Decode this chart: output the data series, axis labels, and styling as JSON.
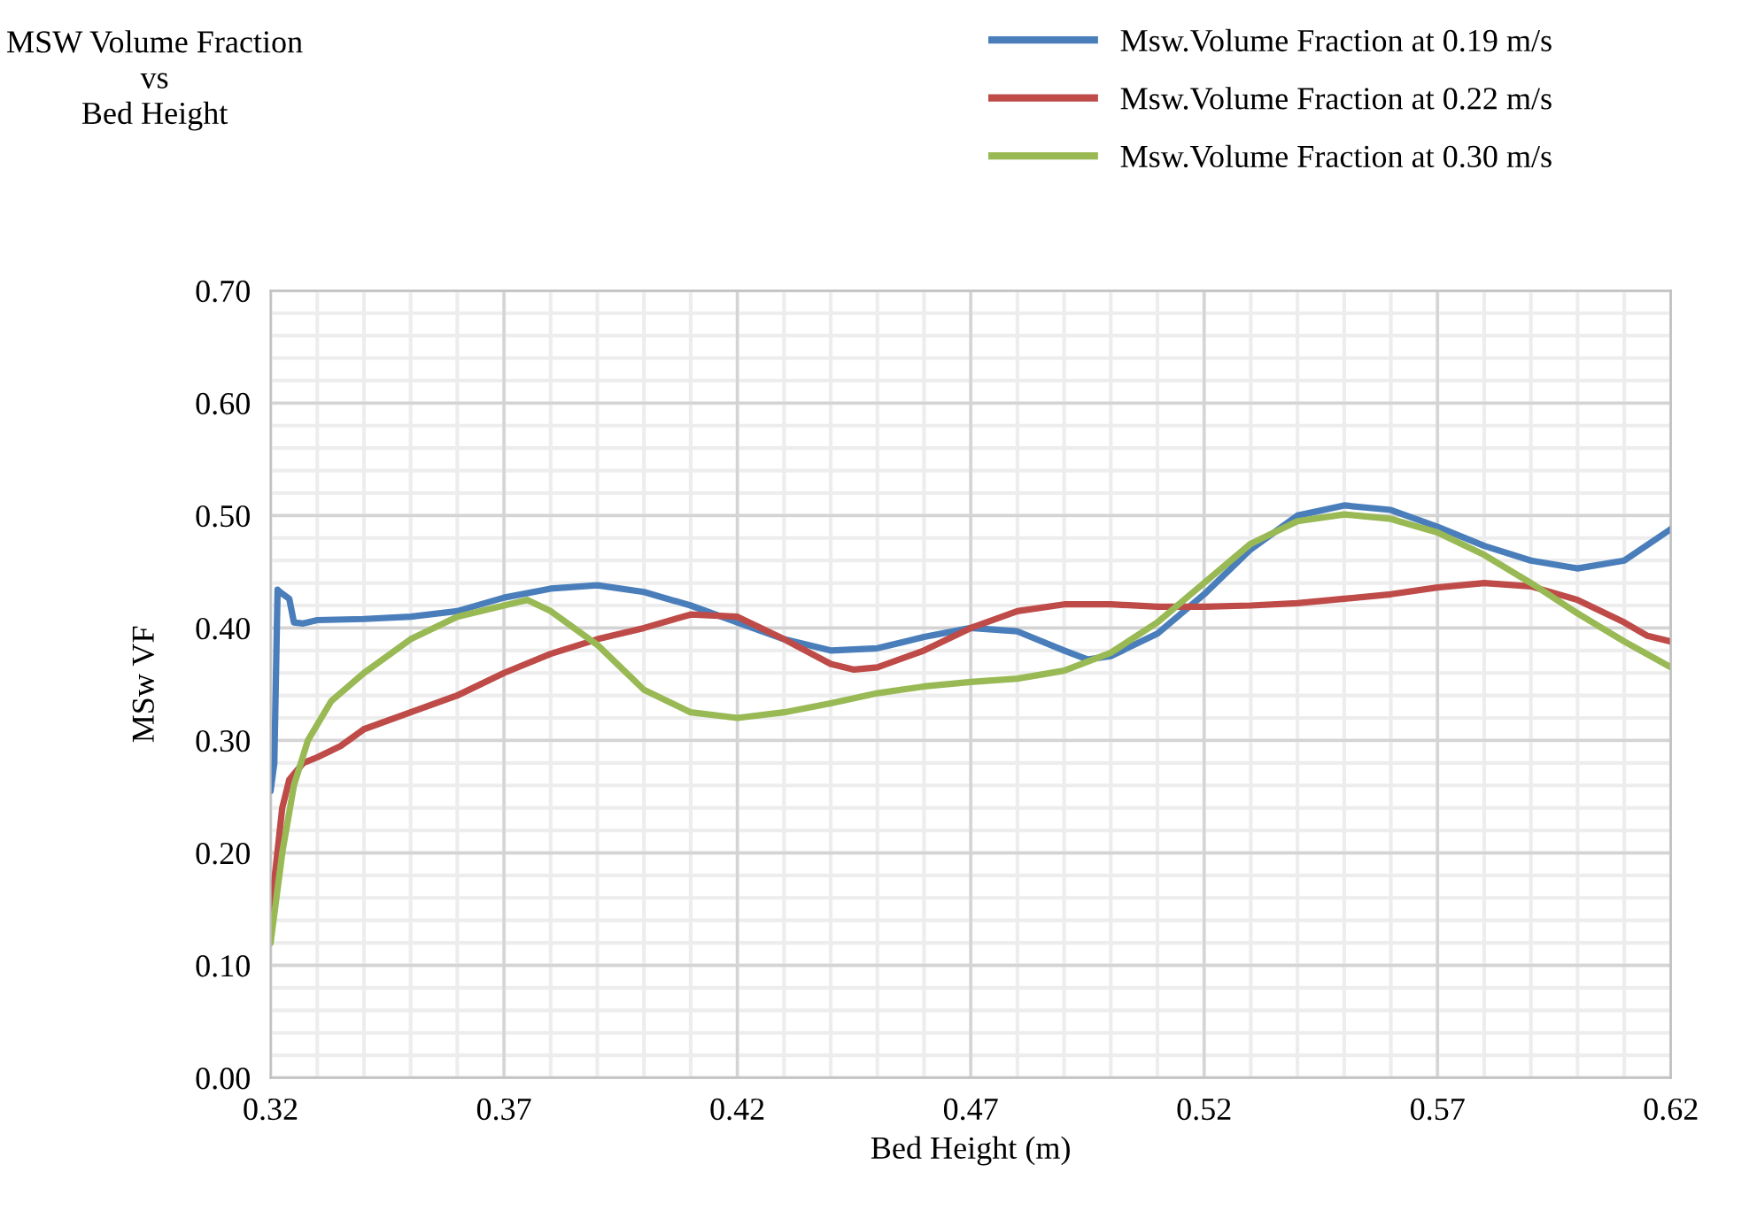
{
  "chart_data": {
    "type": "line",
    "title": "MSW Volume Fraction\nvs\nBed Height",
    "xlabel": "Bed Height (m)",
    "ylabel": "MSw VF",
    "xlim": [
      0.32,
      0.62
    ],
    "xticks": [
      {
        "value": 0.32,
        "label": "0.32"
      },
      {
        "value": 0.37,
        "label": "0.37"
      },
      {
        "value": 0.42,
        "label": "0.42"
      },
      {
        "value": 0.47,
        "label": "0.47"
      },
      {
        "value": 0.52,
        "label": "0.52"
      },
      {
        "value": 0.57,
        "label": "0.57"
      },
      {
        "value": 0.62,
        "label": "0.62"
      }
    ],
    "ylim": [
      0,
      0.7
    ],
    "yticks": [
      {
        "value": 0,
        "label": "0.00"
      },
      {
        "value": 0.1,
        "label": "0.10"
      },
      {
        "value": 0.2,
        "label": "0.20"
      },
      {
        "value": 0.3,
        "label": "0.30"
      },
      {
        "value": 0.4,
        "label": "0.40"
      },
      {
        "value": 0.5,
        "label": "0.50"
      },
      {
        "value": 0.6,
        "label": "0.60"
      },
      {
        "value": 0.7,
        "label": "0.70"
      }
    ],
    "grid": true,
    "legend": "top right",
    "marker": "none",
    "line_style": "solid",
    "series": [
      {
        "name": "Msw.Volume Fraction at 0.19 m/s",
        "color": "#4a7ebb",
        "x": [
          0.32,
          0.3208,
          0.3215,
          0.322,
          0.324,
          0.325,
          0.327,
          0.33,
          0.34,
          0.35,
          0.36,
          0.37,
          0.38,
          0.39,
          0.4,
          0.41,
          0.42,
          0.43,
          0.44,
          0.45,
          0.46,
          0.47,
          0.48,
          0.49,
          0.495,
          0.5,
          0.51,
          0.52,
          0.53,
          0.54,
          0.55,
          0.56,
          0.57,
          0.58,
          0.59,
          0.6,
          0.61,
          0.62
        ],
        "values": [
          0.255,
          0.28,
          0.434,
          0.432,
          0.426,
          0.405,
          0.404,
          0.407,
          0.408,
          0.41,
          0.415,
          0.427,
          0.435,
          0.438,
          0.432,
          0.42,
          0.405,
          0.39,
          0.38,
          0.382,
          0.392,
          0.4,
          0.397,
          0.38,
          0.372,
          0.375,
          0.395,
          0.43,
          0.47,
          0.5,
          0.509,
          0.505,
          0.49,
          0.473,
          0.46,
          0.453,
          0.46,
          0.488
        ]
      },
      {
        "name": "Msw.Volume Fraction at 0.22 m/s",
        "color": "#be4b48",
        "x": [
          0.32,
          0.3225,
          0.324,
          0.327,
          0.33,
          0.335,
          0.34,
          0.35,
          0.36,
          0.37,
          0.38,
          0.39,
          0.4,
          0.41,
          0.42,
          0.43,
          0.44,
          0.445,
          0.45,
          0.46,
          0.47,
          0.48,
          0.49,
          0.5,
          0.51,
          0.52,
          0.53,
          0.54,
          0.55,
          0.56,
          0.57,
          0.58,
          0.59,
          0.6,
          0.61,
          0.615,
          0.62
        ],
        "values": [
          0.145,
          0.24,
          0.265,
          0.28,
          0.285,
          0.295,
          0.31,
          0.325,
          0.34,
          0.36,
          0.377,
          0.39,
          0.4,
          0.412,
          0.41,
          0.39,
          0.368,
          0.363,
          0.365,
          0.38,
          0.4,
          0.415,
          0.421,
          0.421,
          0.419,
          0.419,
          0.42,
          0.422,
          0.426,
          0.43,
          0.436,
          0.44,
          0.437,
          0.425,
          0.405,
          0.393,
          0.388
        ]
      },
      {
        "name": "Msw.Volume Fraction at 0.30 m/s",
        "color": "#98b954",
        "x": [
          0.32,
          0.3225,
          0.325,
          0.328,
          0.333,
          0.34,
          0.35,
          0.36,
          0.37,
          0.375,
          0.38,
          0.39,
          0.4,
          0.41,
          0.42,
          0.43,
          0.44,
          0.45,
          0.46,
          0.47,
          0.48,
          0.49,
          0.5,
          0.51,
          0.52,
          0.53,
          0.54,
          0.55,
          0.56,
          0.57,
          0.58,
          0.59,
          0.6,
          0.61,
          0.62
        ],
        "values": [
          0.12,
          0.2,
          0.26,
          0.3,
          0.335,
          0.36,
          0.39,
          0.41,
          0.42,
          0.425,
          0.415,
          0.385,
          0.345,
          0.325,
          0.32,
          0.325,
          0.333,
          0.342,
          0.348,
          0.352,
          0.355,
          0.362,
          0.378,
          0.405,
          0.44,
          0.475,
          0.495,
          0.501,
          0.497,
          0.485,
          0.465,
          0.44,
          0.413,
          0.388,
          0.365
        ]
      }
    ]
  }
}
